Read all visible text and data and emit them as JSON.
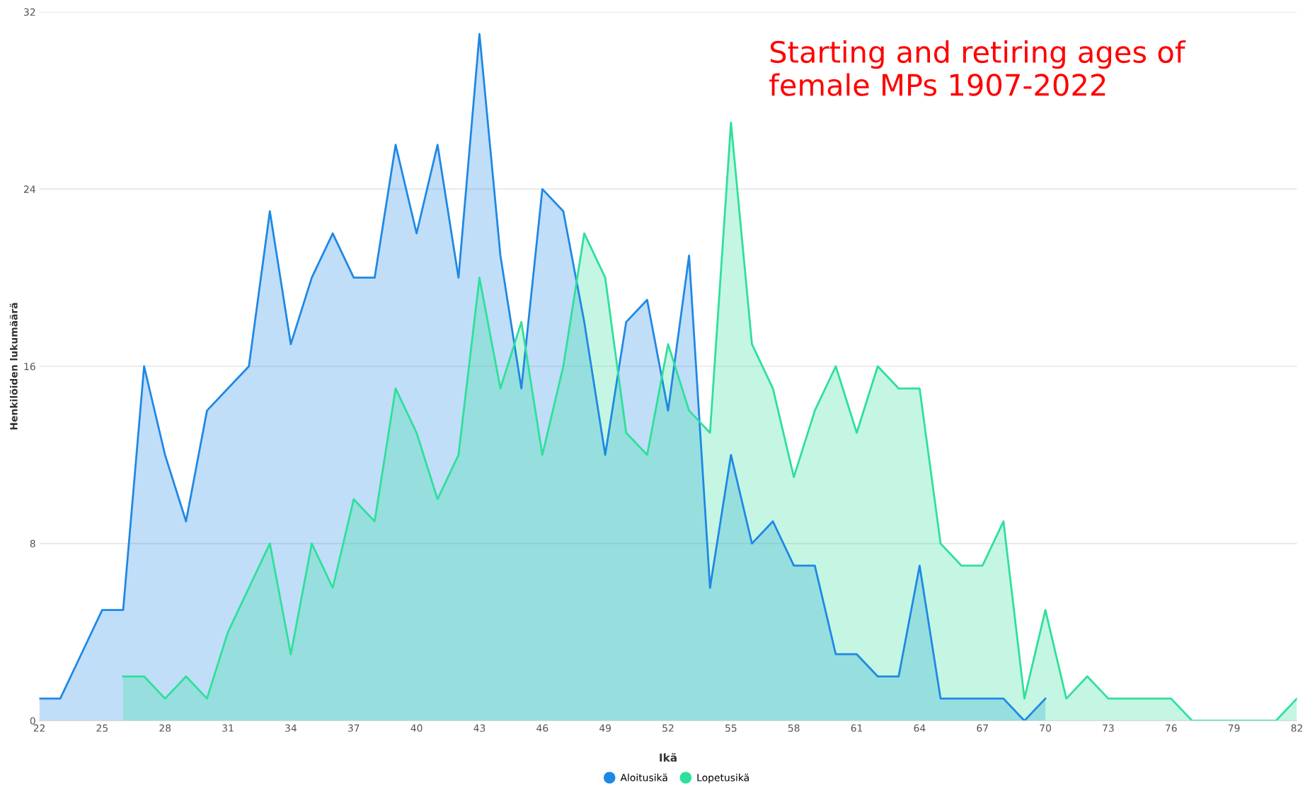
{
  "chart_data": {
    "type": "area",
    "title": "Starting and retiring ages of\nfemale MPs 1907-2022",
    "xlabel": "Ikä",
    "ylabel": "Henkilöiden lukumäärä",
    "xlim": [
      22,
      82
    ],
    "xticks": [
      22,
      25,
      28,
      31,
      34,
      37,
      40,
      43,
      46,
      49,
      52,
      55,
      58,
      61,
      64,
      67,
      70,
      73,
      76,
      79,
      82
    ],
    "ylim": [
      0,
      32
    ],
    "yticks": [
      0,
      8,
      16,
      24,
      32
    ],
    "grid": "y",
    "legend": "bottom",
    "marker": "none",
    "line_style": "solid",
    "series": [
      {
        "name": "Aloitusikä",
        "color": "#1e88e5",
        "x": [
          22,
          23,
          24,
          25,
          26,
          27,
          28,
          29,
          30,
          31,
          32,
          33,
          34,
          35,
          36,
          37,
          38,
          39,
          40,
          41,
          42,
          43,
          44,
          45,
          46,
          47,
          48,
          49,
          50,
          51,
          52,
          53,
          54,
          55,
          56,
          57,
          58,
          59,
          60,
          61,
          62,
          63,
          64,
          65,
          66,
          67,
          68,
          69,
          70
        ],
        "values": [
          1,
          1,
          3,
          5,
          5,
          16,
          12,
          9,
          14,
          15,
          16,
          23,
          17,
          20,
          22,
          20,
          20,
          26,
          22,
          26,
          20,
          31,
          21,
          15,
          24,
          23,
          18,
          12,
          18,
          19,
          14,
          21,
          6,
          12,
          8,
          9,
          7,
          7,
          3,
          3,
          2,
          2,
          7,
          1,
          1,
          1,
          1,
          0,
          1
        ]
      },
      {
        "name": "Lopetusikä",
        "color": "#2ee09a",
        "x": [
          26,
          27,
          28,
          29,
          30,
          31,
          32,
          33,
          34,
          35,
          36,
          37,
          38,
          39,
          40,
          41,
          42,
          43,
          44,
          45,
          46,
          47,
          48,
          49,
          50,
          51,
          52,
          53,
          54,
          55,
          56,
          57,
          58,
          59,
          60,
          61,
          62,
          63,
          64,
          65,
          66,
          67,
          68,
          69,
          70,
          71,
          72,
          73,
          74,
          75,
          76,
          77,
          78,
          79,
          80,
          81,
          82
        ],
        "values": [
          2,
          2,
          1,
          2,
          1,
          4,
          6,
          8,
          3,
          8,
          6,
          10,
          9,
          15,
          13,
          10,
          12,
          20,
          15,
          18,
          12,
          16,
          22,
          20,
          13,
          12,
          17,
          14,
          13,
          27,
          17,
          15,
          11,
          14,
          16,
          13,
          16,
          15,
          15,
          8,
          7,
          7,
          9,
          1,
          5,
          1,
          2,
          1,
          1,
          1,
          1,
          0,
          0,
          0,
          0,
          0,
          1
        ]
      }
    ]
  }
}
